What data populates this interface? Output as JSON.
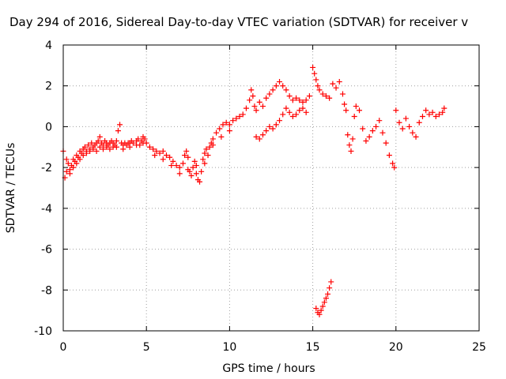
{
  "chart_data": {
    "type": "scatter",
    "title": "Day 294 of 2016, Sidereal Day-to-day VTEC variation (SDTVAR) for receiver v",
    "xlabel": "GPS time / hours",
    "ylabel": "SDTVAR / TECUs",
    "xlim": [
      0,
      25
    ],
    "ylim": [
      -10,
      4
    ],
    "xticks": [
      0,
      5,
      10,
      15,
      20,
      25
    ],
    "yticks": [
      -10,
      -8,
      -6,
      -4,
      -2,
      0,
      2,
      4
    ],
    "grid": true,
    "marker": "+",
    "series_color": "#ff0000",
    "series": [
      {
        "points": [
          [
            0.0,
            -1.2
          ],
          [
            0.1,
            -2.5
          ],
          [
            0.2,
            -2.2
          ],
          [
            0.3,
            -1.8
          ],
          [
            0.4,
            -2.1
          ],
          [
            0.5,
            -1.9
          ],
          [
            0.6,
            -1.6
          ],
          [
            0.7,
            -1.7
          ],
          [
            0.8,
            -1.4
          ],
          [
            0.9,
            -1.5
          ],
          [
            1.0,
            -1.2
          ],
          [
            1.1,
            -1.3
          ],
          [
            1.2,
            -1.1
          ],
          [
            1.3,
            -1.0
          ],
          [
            1.4,
            -1.2
          ],
          [
            1.5,
            -0.9
          ],
          [
            1.6,
            -1.1
          ],
          [
            1.7,
            -0.8
          ],
          [
            1.8,
            -1.0
          ],
          [
            1.9,
            -0.9
          ],
          [
            2.0,
            -0.8
          ],
          [
            2.1,
            -0.7
          ],
          [
            2.2,
            -0.5
          ],
          [
            2.3,
            -0.8
          ],
          [
            2.4,
            -0.9
          ],
          [
            2.5,
            -0.7
          ],
          [
            2.6,
            -0.8
          ],
          [
            2.7,
            -0.9
          ],
          [
            2.8,
            -0.8
          ],
          [
            2.9,
            -0.7
          ],
          [
            3.0,
            -0.8
          ],
          [
            3.1,
            -0.9
          ],
          [
            3.2,
            -0.7
          ],
          [
            3.3,
            -0.2
          ],
          [
            3.4,
            0.1
          ],
          [
            3.5,
            -0.8
          ],
          [
            3.6,
            -0.9
          ],
          [
            3.7,
            -0.8
          ],
          [
            3.8,
            -0.9
          ],
          [
            3.9,
            -0.8
          ],
          [
            4.0,
            -0.8
          ],
          [
            4.1,
            -0.7
          ],
          [
            4.2,
            -0.8
          ],
          [
            4.4,
            -0.7
          ],
          [
            4.5,
            -0.6
          ],
          [
            4.6,
            -0.9
          ],
          [
            4.7,
            -0.7
          ],
          [
            4.8,
            -0.5
          ],
          [
            4.9,
            -0.6
          ],
          [
            5.0,
            -0.8
          ],
          [
            5.2,
            -1.0
          ],
          [
            5.4,
            -1.1
          ],
          [
            5.6,
            -1.2
          ],
          [
            5.8,
            -1.3
          ],
          [
            6.0,
            -1.2
          ],
          [
            6.2,
            -1.4
          ],
          [
            6.4,
            -1.5
          ],
          [
            6.6,
            -1.7
          ],
          [
            6.8,
            -1.9
          ],
          [
            7.0,
            -2.0
          ],
          [
            7.2,
            -1.8
          ],
          [
            7.3,
            -1.4
          ],
          [
            7.4,
            -1.2
          ],
          [
            7.5,
            -1.5
          ],
          [
            7.6,
            -2.2
          ],
          [
            7.7,
            -2.4
          ],
          [
            7.8,
            -2.0
          ],
          [
            7.9,
            -1.7
          ],
          [
            8.0,
            -2.3
          ],
          [
            8.1,
            -2.6
          ],
          [
            8.2,
            -2.7
          ],
          [
            8.3,
            -2.2
          ],
          [
            8.4,
            -1.6
          ],
          [
            8.5,
            -1.3
          ],
          [
            8.6,
            -1.1
          ],
          [
            8.7,
            -1.4
          ],
          [
            8.8,
            -1.0
          ],
          [
            8.9,
            -0.8
          ],
          [
            9.0,
            -0.6
          ],
          [
            9.2,
            -0.3
          ],
          [
            9.4,
            -0.1
          ],
          [
            9.6,
            0.1
          ],
          [
            9.8,
            0.2
          ],
          [
            10.0,
            0.1
          ],
          [
            10.2,
            0.3
          ],
          [
            10.4,
            0.4
          ],
          [
            10.6,
            0.5
          ],
          [
            10.8,
            0.6
          ],
          [
            11.0,
            0.9
          ],
          [
            11.2,
            1.3
          ],
          [
            11.3,
            1.8
          ],
          [
            11.4,
            1.5
          ],
          [
            11.5,
            1.0
          ],
          [
            11.6,
            0.8
          ],
          [
            11.8,
            1.2
          ],
          [
            12.0,
            1.0
          ],
          [
            12.2,
            1.4
          ],
          [
            12.4,
            1.6
          ],
          [
            12.6,
            1.8
          ],
          [
            12.8,
            2.0
          ],
          [
            13.0,
            2.2
          ],
          [
            13.2,
            2.0
          ],
          [
            13.4,
            1.8
          ],
          [
            13.6,
            1.5
          ],
          [
            13.8,
            1.3
          ],
          [
            14.0,
            1.4
          ],
          [
            14.2,
            1.3
          ],
          [
            14.4,
            1.2
          ],
          [
            14.6,
            1.3
          ],
          [
            14.8,
            1.5
          ],
          [
            15.0,
            2.9
          ],
          [
            15.1,
            2.6
          ],
          [
            15.2,
            2.3
          ],
          [
            15.3,
            2.0
          ],
          [
            15.4,
            1.8
          ],
          [
            15.6,
            1.6
          ],
          [
            15.8,
            1.5
          ],
          [
            16.0,
            1.4
          ],
          [
            16.2,
            2.1
          ],
          [
            16.4,
            1.9
          ],
          [
            16.6,
            2.2
          ],
          [
            16.8,
            1.6
          ],
          [
            16.9,
            1.1
          ],
          [
            17.0,
            0.8
          ],
          [
            17.1,
            -0.4
          ],
          [
            17.2,
            -0.9
          ],
          [
            17.3,
            -1.2
          ],
          [
            17.4,
            -0.6
          ],
          [
            17.5,
            0.5
          ],
          [
            17.6,
            1.0
          ],
          [
            17.8,
            0.8
          ],
          [
            18.0,
            -0.1
          ],
          [
            18.2,
            -0.7
          ],
          [
            18.4,
            -0.5
          ],
          [
            18.6,
            -0.2
          ],
          [
            18.8,
            0.0
          ],
          [
            19.0,
            0.3
          ],
          [
            19.2,
            -0.3
          ],
          [
            19.4,
            -0.8
          ],
          [
            19.6,
            -1.4
          ],
          [
            19.8,
            -1.8
          ],
          [
            19.9,
            -2.0
          ],
          [
            20.0,
            0.8
          ],
          [
            20.2,
            0.2
          ],
          [
            20.4,
            -0.1
          ],
          [
            20.6,
            0.4
          ],
          [
            20.8,
            0.0
          ],
          [
            21.0,
            -0.3
          ],
          [
            21.2,
            -0.5
          ],
          [
            21.4,
            0.2
          ],
          [
            21.6,
            0.5
          ],
          [
            21.8,
            0.8
          ],
          [
            22.0,
            0.6
          ],
          [
            22.2,
            0.7
          ],
          [
            22.4,
            0.5
          ],
          [
            22.6,
            0.6
          ],
          [
            22.8,
            0.7
          ],
          [
            22.9,
            0.9
          ],
          [
            11.6,
            -0.5
          ],
          [
            11.8,
            -0.6
          ],
          [
            12.0,
            -0.4
          ],
          [
            12.2,
            -0.2
          ],
          [
            12.4,
            0.0
          ],
          [
            12.6,
            -0.1
          ],
          [
            12.8,
            0.1
          ],
          [
            13.0,
            0.3
          ],
          [
            13.2,
            0.6
          ],
          [
            13.4,
            0.9
          ],
          [
            13.6,
            0.7
          ],
          [
            13.8,
            0.5
          ],
          [
            14.0,
            0.6
          ],
          [
            14.2,
            0.8
          ],
          [
            14.4,
            0.9
          ],
          [
            14.6,
            0.7
          ],
          [
            15.2,
            -8.9
          ],
          [
            15.3,
            -9.1
          ],
          [
            15.4,
            -9.2
          ],
          [
            15.5,
            -9.0
          ],
          [
            15.6,
            -8.8
          ],
          [
            15.7,
            -8.6
          ],
          [
            15.8,
            -8.4
          ],
          [
            15.9,
            -8.2
          ],
          [
            16.0,
            -7.9
          ],
          [
            16.1,
            -7.6
          ],
          [
            0.2,
            -1.6
          ],
          [
            0.4,
            -2.3
          ],
          [
            0.6,
            -2.0
          ],
          [
            0.8,
            -1.8
          ],
          [
            1.0,
            -1.6
          ],
          [
            1.2,
            -1.4
          ],
          [
            1.4,
            -1.3
          ],
          [
            1.6,
            -1.2
          ],
          [
            1.8,
            -1.1
          ],
          [
            2.0,
            -1.2
          ],
          [
            2.2,
            -1.0
          ],
          [
            2.4,
            -1.1
          ],
          [
            2.6,
            -1.0
          ],
          [
            2.8,
            -1.1
          ],
          [
            3.0,
            -1.0
          ],
          [
            3.2,
            -1.0
          ],
          [
            3.6,
            -1.1
          ],
          [
            4.0,
            -1.0
          ],
          [
            4.4,
            -0.9
          ],
          [
            4.8,
            -0.8
          ],
          [
            5.5,
            -1.4
          ],
          [
            6.0,
            -1.6
          ],
          [
            6.5,
            -1.9
          ],
          [
            7.0,
            -2.3
          ],
          [
            7.5,
            -2.1
          ],
          [
            8.0,
            -1.9
          ],
          [
            8.5,
            -1.8
          ],
          [
            9.0,
            -0.9
          ],
          [
            9.5,
            -0.5
          ],
          [
            10.0,
            -0.2
          ]
        ]
      }
    ]
  }
}
